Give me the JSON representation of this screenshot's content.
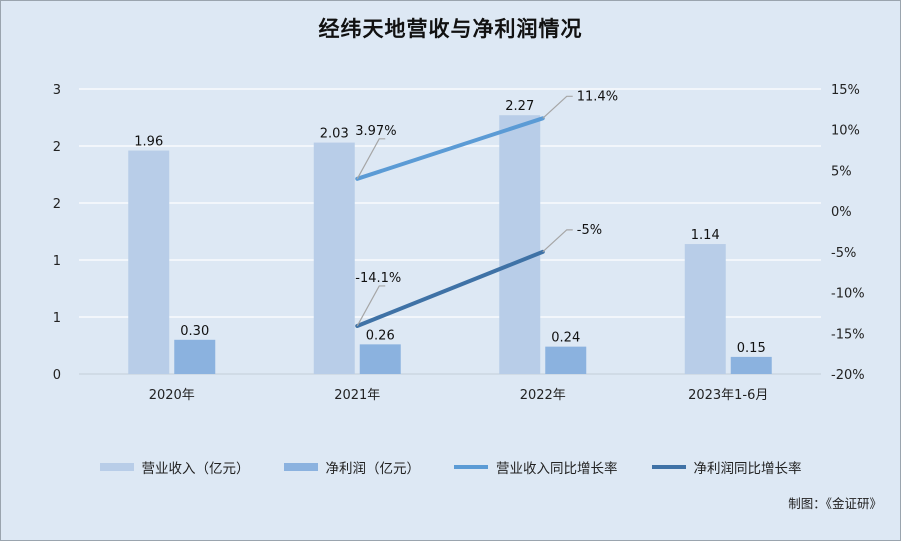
{
  "chart_data": {
    "type": "bar",
    "title": "经纬天地营收与净利润情况",
    "categories": [
      "2020年",
      "2021年",
      "2022年",
      "2023年1-6月"
    ],
    "left_axis": {
      "ticks": [
        "3",
        "2",
        "2",
        "1",
        "1",
        "0"
      ],
      "ylim": [
        0,
        2.5
      ]
    },
    "right_axis": {
      "ticks": [
        "15%",
        "10%",
        "5%",
        "0%",
        "-5%",
        "-10%",
        "-15%",
        "-20%"
      ],
      "ylim": [
        -20,
        15
      ]
    },
    "series": [
      {
        "name": "营业收入（亿元）",
        "kind": "bar",
        "axis": "left",
        "color": "#b8cde8",
        "values": [
          1.96,
          2.03,
          2.27,
          1.14
        ],
        "labels": [
          "1.96",
          "2.03",
          "2.27",
          "1.14"
        ]
      },
      {
        "name": "净利润（亿元）",
        "kind": "bar",
        "axis": "left",
        "color": "#8bb2df",
        "values": [
          0.3,
          0.26,
          0.24,
          0.15
        ],
        "labels": [
          "0.30",
          "0.26",
          "0.24",
          "0.15"
        ]
      },
      {
        "name": "营业收入同比增长率",
        "kind": "line",
        "axis": "right",
        "color": "#5b9bd5",
        "values": [
          null,
          3.97,
          11.4,
          null
        ],
        "labels": [
          null,
          "3.97%",
          "11.4%",
          null
        ]
      },
      {
        "name": "净利润同比增长率",
        "kind": "line",
        "axis": "right",
        "color": "#3f72a6",
        "values": [
          null,
          -14.1,
          -5,
          null
        ],
        "labels": [
          null,
          "-14.1%",
          "-5%",
          null
        ]
      }
    ],
    "grid": true,
    "legend_position": "bottom"
  },
  "credit": "制图：《金证研》"
}
